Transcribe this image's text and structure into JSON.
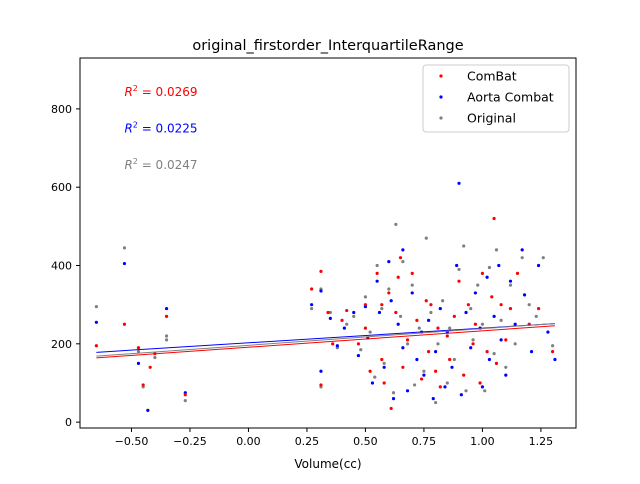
{
  "chart_data": {
    "type": "scatter",
    "title": "original_firstorder_InterquartileRange",
    "xlabel": "Volume(cc)",
    "ylabel": "",
    "xlim": [
      -0.72,
      1.4
    ],
    "ylim": [
      -15,
      930
    ],
    "xticks": [
      -0.5,
      -0.25,
      0.0,
      0.25,
      0.5,
      0.75,
      1.0,
      1.25
    ],
    "xtick_labels": [
      "−0.50",
      "−0.25",
      "0.00",
      "0.25",
      "0.50",
      "0.75",
      "1.00",
      "1.25"
    ],
    "yticks": [
      0,
      200,
      400,
      600,
      800
    ],
    "ytick_labels": [
      "0",
      "200",
      "400",
      "600",
      "800"
    ],
    "grid": false,
    "legend_position": "top-right",
    "annotations": [
      {
        "prefix": "R",
        "sup": "2",
        "text": " = 0.0269",
        "color": "#ff0000",
        "x": -0.53,
        "y": 833
      },
      {
        "prefix": "R",
        "sup": "2",
        "text": " = 0.0225",
        "color": "#0000ff",
        "x": -0.53,
        "y": 740
      },
      {
        "prefix": "R",
        "sup": "2",
        "text": " = 0.0247",
        "color": "#808080",
        "x": -0.53,
        "y": 647
      }
    ],
    "series": [
      {
        "name": "ComBat",
        "color": "#ff0000",
        "fit": {
          "slope": 41.9,
          "intercept": 191.3
        },
        "points": [
          [
            -0.65,
            195
          ],
          [
            -0.53,
            250
          ],
          [
            -0.47,
            190
          ],
          [
            -0.45,
            95
          ],
          [
            -0.42,
            140
          ],
          [
            -0.4,
            175
          ],
          [
            -0.35,
            270
          ],
          [
            -0.27,
            70
          ],
          [
            0.27,
            340
          ],
          [
            0.31,
            385
          ],
          [
            0.31,
            95
          ],
          [
            0.34,
            280
          ],
          [
            0.36,
            200
          ],
          [
            0.4,
            260
          ],
          [
            0.42,
            285
          ],
          [
            0.47,
            200
          ],
          [
            0.5,
            300
          ],
          [
            0.5,
            240
          ],
          [
            0.52,
            130
          ],
          [
            0.55,
            380
          ],
          [
            0.57,
            300
          ],
          [
            0.57,
            160
          ],
          [
            0.58,
            100
          ],
          [
            0.6,
            330
          ],
          [
            0.61,
            35
          ],
          [
            0.63,
            280
          ],
          [
            0.64,
            370
          ],
          [
            0.65,
            420
          ],
          [
            0.66,
            140
          ],
          [
            0.68,
            210
          ],
          [
            0.7,
            380
          ],
          [
            0.72,
            260
          ],
          [
            0.74,
            110
          ],
          [
            0.76,
            310
          ],
          [
            0.77,
            180
          ],
          [
            0.78,
            300
          ],
          [
            0.8,
            130
          ],
          [
            0.81,
            240
          ],
          [
            0.82,
            90
          ],
          [
            0.85,
            220
          ],
          [
            0.86,
            160
          ],
          [
            0.88,
            270
          ],
          [
            0.9,
            360
          ],
          [
            0.92,
            120
          ],
          [
            0.94,
            300
          ],
          [
            0.96,
            200
          ],
          [
            0.97,
            250
          ],
          [
            0.99,
            100
          ],
          [
            1.0,
            380
          ],
          [
            1.02,
            180
          ],
          [
            1.04,
            320
          ],
          [
            1.05,
            520
          ],
          [
            1.06,
            150
          ],
          [
            1.08,
            300
          ],
          [
            1.1,
            210
          ],
          [
            1.12,
            290
          ],
          [
            1.15,
            380
          ],
          [
            1.2,
            250
          ],
          [
            1.24,
            290
          ],
          [
            1.3,
            180
          ]
        ]
      },
      {
        "name": "Aorta Combat",
        "color": "#0000ff",
        "fit": {
          "slope": 37.4,
          "intercept": 202.6
        },
        "points": [
          [
            -0.65,
            255
          ],
          [
            -0.53,
            405
          ],
          [
            -0.47,
            150
          ],
          [
            -0.43,
            30
          ],
          [
            -0.35,
            290
          ],
          [
            -0.27,
            75
          ],
          [
            0.27,
            300
          ],
          [
            0.31,
            335
          ],
          [
            0.31,
            130
          ],
          [
            0.35,
            265
          ],
          [
            0.38,
            195
          ],
          [
            0.41,
            240
          ],
          [
            0.45,
            280
          ],
          [
            0.47,
            170
          ],
          [
            0.5,
            295
          ],
          [
            0.51,
            215
          ],
          [
            0.53,
            100
          ],
          [
            0.55,
            360
          ],
          [
            0.56,
            280
          ],
          [
            0.58,
            140
          ],
          [
            0.6,
            410
          ],
          [
            0.61,
            310
          ],
          [
            0.62,
            60
          ],
          [
            0.64,
            250
          ],
          [
            0.66,
            440
          ],
          [
            0.66,
            190
          ],
          [
            0.68,
            80
          ],
          [
            0.7,
            330
          ],
          [
            0.72,
            160
          ],
          [
            0.74,
            230
          ],
          [
            0.75,
            120
          ],
          [
            0.77,
            260
          ],
          [
            0.79,
            60
          ],
          [
            0.8,
            180
          ],
          [
            0.82,
            290
          ],
          [
            0.84,
            90
          ],
          [
            0.85,
            230
          ],
          [
            0.87,
            140
          ],
          [
            0.89,
            400
          ],
          [
            0.9,
            610
          ],
          [
            0.91,
            70
          ],
          [
            0.93,
            280
          ],
          [
            0.95,
            190
          ],
          [
            0.97,
            330
          ],
          [
            0.99,
            240
          ],
          [
            1.0,
            90
          ],
          [
            1.02,
            370
          ],
          [
            1.03,
            160
          ],
          [
            1.05,
            270
          ],
          [
            1.07,
            400
          ],
          [
            1.08,
            210
          ],
          [
            1.1,
            120
          ],
          [
            1.12,
            360
          ],
          [
            1.14,
            250
          ],
          [
            1.17,
            440
          ],
          [
            1.18,
            325
          ],
          [
            1.21,
            180
          ],
          [
            1.24,
            400
          ],
          [
            1.28,
            230
          ],
          [
            1.31,
            160
          ]
        ]
      },
      {
        "name": "Original",
        "color": "#808080",
        "fit": {
          "slope": 42.6,
          "intercept": 196.2
        },
        "points": [
          [
            -0.65,
            295
          ],
          [
            -0.53,
            445
          ],
          [
            -0.47,
            180
          ],
          [
            -0.45,
            90
          ],
          [
            -0.4,
            165
          ],
          [
            -0.35,
            220
          ],
          [
            -0.35,
            210
          ],
          [
            -0.27,
            55
          ],
          [
            0.27,
            290
          ],
          [
            0.31,
            340
          ],
          [
            0.31,
            90
          ],
          [
            0.35,
            280
          ],
          [
            0.38,
            190
          ],
          [
            0.42,
            250
          ],
          [
            0.45,
            270
          ],
          [
            0.48,
            185
          ],
          [
            0.5,
            320
          ],
          [
            0.52,
            230
          ],
          [
            0.54,
            115
          ],
          [
            0.55,
            400
          ],
          [
            0.57,
            290
          ],
          [
            0.58,
            150
          ],
          [
            0.6,
            340
          ],
          [
            0.62,
            75
          ],
          [
            0.63,
            505
          ],
          [
            0.65,
            270
          ],
          [
            0.66,
            410
          ],
          [
            0.68,
            200
          ],
          [
            0.7,
            350
          ],
          [
            0.71,
            95
          ],
          [
            0.73,
            240
          ],
          [
            0.75,
            130
          ],
          [
            0.76,
            470
          ],
          [
            0.78,
            280
          ],
          [
            0.8,
            50
          ],
          [
            0.81,
            200
          ],
          [
            0.83,
            310
          ],
          [
            0.85,
            100
          ],
          [
            0.86,
            240
          ],
          [
            0.88,
            160
          ],
          [
            0.9,
            390
          ],
          [
            0.92,
            450
          ],
          [
            0.93,
            80
          ],
          [
            0.95,
            290
          ],
          [
            0.96,
            210
          ],
          [
            0.98,
            350
          ],
          [
            1.0,
            250
          ],
          [
            1.01,
            80
          ],
          [
            1.03,
            395
          ],
          [
            1.05,
            175
          ],
          [
            1.06,
            440
          ],
          [
            1.08,
            260
          ],
          [
            1.1,
            140
          ],
          [
            1.12,
            350
          ],
          [
            1.14,
            200
          ],
          [
            1.17,
            420
          ],
          [
            1.2,
            300
          ],
          [
            1.23,
            270
          ],
          [
            1.26,
            420
          ],
          [
            1.3,
            195
          ]
        ]
      }
    ]
  }
}
